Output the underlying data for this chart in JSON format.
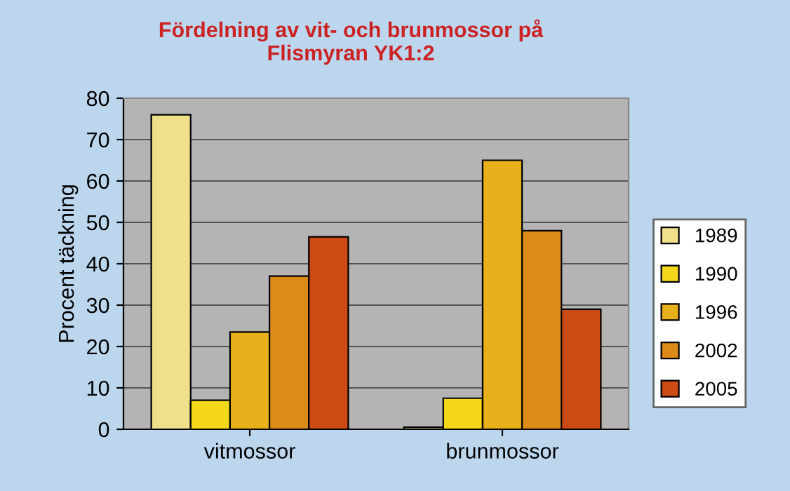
{
  "chart_data": {
    "type": "bar",
    "title": "Fördelning av vit- och brunmossor på\nFlismyran YK1:2",
    "ylabel": "Procent täckning",
    "categories": [
      "vitmossor",
      "brunmossor"
    ],
    "series": [
      {
        "name": "1989",
        "color": "#f0e08a",
        "values": [
          76,
          0.5
        ]
      },
      {
        "name": "1990",
        "color": "#f5d81a",
        "values": [
          7,
          7.5
        ]
      },
      {
        "name": "1996",
        "color": "#e8b01a",
        "values": [
          23.5,
          65
        ]
      },
      {
        "name": "2002",
        "color": "#dc8a18",
        "values": [
          37,
          48
        ]
      },
      {
        "name": "2005",
        "color": "#cc4a14",
        "values": [
          46.5,
          29
        ]
      }
    ],
    "ylim": [
      0,
      80
    ],
    "yticks": [
      0,
      10,
      20,
      30,
      40,
      50,
      60,
      70,
      80
    ],
    "grid": "y",
    "legend": "right"
  }
}
